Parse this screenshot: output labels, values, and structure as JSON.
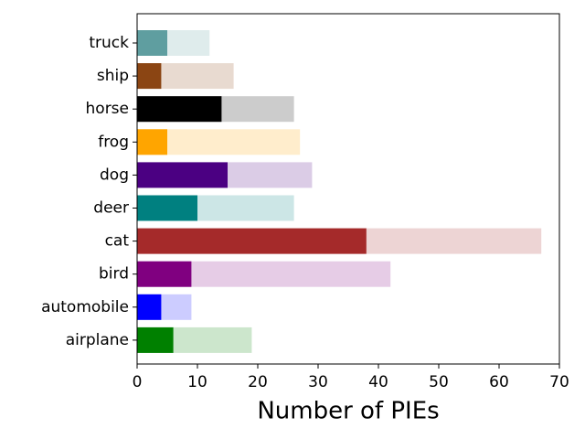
{
  "chart_data": {
    "type": "bar",
    "orientation": "horizontal",
    "x_label": "Number of PIEs",
    "categories": [
      "airplane",
      "automobile",
      "bird",
      "cat",
      "deer",
      "dog",
      "frog",
      "horse",
      "ship",
      "truck"
    ],
    "series": [
      {
        "values": [
          19,
          9,
          42,
          67,
          26,
          29,
          27,
          26,
          16,
          12
        ],
        "colors": [
          "#cce6cc",
          "#ccccff",
          "#e6cce6",
          "#edd4d4",
          "#cce6e6",
          "#dbcce6",
          "#ffedcc",
          "#cccccc",
          "#e8dad0",
          "#dfecec"
        ]
      },
      {
        "values": [
          6,
          4,
          9,
          38,
          10,
          15,
          5,
          14,
          4,
          5
        ],
        "colors": [
          "#008000",
          "#0000ff",
          "#800080",
          "#a52a2a",
          "#008080",
          "#4b0082",
          "#ffa500",
          "#000000",
          "#8b4513",
          "#5f9ea0"
        ]
      }
    ],
    "xlim": [
      0,
      70
    ],
    "xticks": [
      0,
      10,
      20,
      30,
      40,
      50,
      60,
      70
    ]
  }
}
